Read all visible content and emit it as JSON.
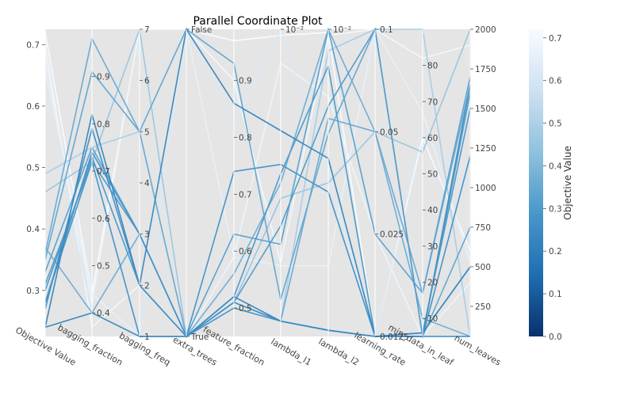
{
  "chart_data": {
    "type": "parallel_coordinates",
    "title": "Parallel Coordinate Plot",
    "colorbar": {
      "label": "Objective Value",
      "range": [
        0,
        0.72
      ],
      "ticks": [
        "0.0",
        "0.1",
        "0.2",
        "0.3",
        "0.4",
        "0.5",
        "0.6",
        "0.7"
      ],
      "colormap": "Blues_r"
    },
    "axes": [
      {
        "name": "Objective Value",
        "min": 0.225,
        "max": 0.725,
        "ticks": [
          "0.3",
          "0.4",
          "0.5",
          "0.6",
          "0.7"
        ],
        "tick_values": [
          0.3,
          0.4,
          0.5,
          0.6,
          0.7
        ]
      },
      {
        "name": "bagging_fraction",
        "min": 0.35,
        "max": 1.0,
        "ticks": [
          "0.4",
          "0.5",
          "0.6",
          "0.7",
          "0.8",
          "0.9"
        ],
        "tick_values": [
          0.4,
          0.5,
          0.6,
          0.7,
          0.8,
          0.9
        ]
      },
      {
        "name": "bagging_freq",
        "min": 1,
        "max": 7,
        "ticks": [
          "1",
          "2",
          "3",
          "4",
          "5",
          "6",
          "7"
        ],
        "tick_values": [
          1,
          2,
          3,
          4,
          5,
          6,
          7
        ]
      },
      {
        "name": "extra_trees",
        "min": 0,
        "max": 1,
        "ticks": [
          "True",
          "False"
        ],
        "tick_values": [
          0,
          1
        ]
      },
      {
        "name": "feature_fraction",
        "min": 0.45,
        "max": 0.99,
        "ticks": [
          "0.5",
          "0.6",
          "0.7",
          "0.8",
          "0.9"
        ],
        "tick_values": [
          0.5,
          0.6,
          0.7,
          0.8,
          0.9
        ]
      },
      {
        "name": "lambda_l1",
        "min": 0,
        "max": 1,
        "ticks": [
          "10⁻²"
        ],
        "tick_values": [
          1
        ]
      },
      {
        "name": "lambda_l2",
        "min": 0,
        "max": 1,
        "ticks": [
          "10⁻²"
        ],
        "tick_values": [
          1
        ]
      },
      {
        "name": "learning_rate",
        "min": 0.0125,
        "max": 0.1,
        "ticks": [
          "0.0125",
          "0.025",
          "0.05",
          "0.1"
        ],
        "tick_values": [
          0.0125,
          0.025,
          0.05,
          0.1
        ],
        "log": true
      },
      {
        "name": "min_data_in_leaf",
        "min": 5,
        "max": 90,
        "ticks": [
          "10",
          "20",
          "30",
          "40",
          "50",
          "60",
          "70",
          "80"
        ],
        "tick_values": [
          10,
          20,
          30,
          40,
          50,
          60,
          70,
          80
        ]
      },
      {
        "name": "num_leaves",
        "min": 60,
        "max": 2000,
        "ticks": [
          "250",
          "500",
          "750",
          "1000",
          "1250",
          "1500",
          "1750",
          "2000"
        ],
        "tick_values": [
          250,
          500,
          750,
          1000,
          1250,
          1500,
          1750,
          2000
        ]
      }
    ],
    "trials": [
      {
        "objective": 0.24,
        "values": [
          0.4,
          1,
          0,
          0.52,
          0.05,
          0.02,
          0.0125,
          5,
          60
        ]
      },
      {
        "objective": 0.24,
        "values": [
          0.82,
          2,
          1,
          0.86,
          0.67,
          0.58,
          0.0125,
          6,
          500
        ]
      },
      {
        "objective": 0.28,
        "values": [
          0.72,
          1,
          0,
          0.5,
          0.05,
          0.02,
          0.0125,
          6,
          500
        ]
      },
      {
        "objective": 0.28,
        "values": [
          0.74,
          3,
          0,
          0.74,
          0.56,
          0.47,
          0.0125,
          5,
          1200
        ]
      },
      {
        "objective": 0.27,
        "values": [
          0.79,
          2,
          0,
          0.51,
          0.05,
          0.02,
          0.0125,
          5,
          1650
        ]
      },
      {
        "objective": 0.3,
        "values": [
          0.73,
          2,
          0,
          0.52,
          0.53,
          0.88,
          0.0125,
          6,
          1500
        ]
      },
      {
        "objective": 0.31,
        "values": [
          0.72,
          3,
          0,
          0.51,
          0.36,
          0.75,
          0.1,
          5,
          1600
        ]
      },
      {
        "objective": 0.33,
        "values": [
          0.75,
          3,
          0,
          0.63,
          0.3,
          1.0,
          0.025,
          17,
          1700
        ]
      },
      {
        "objective": 0.35,
        "values": [
          0.91,
          5,
          1,
          0.93,
          0.12,
          0.66,
          0.1,
          5,
          750
        ]
      },
      {
        "objective": 0.36,
        "values": [
          0.98,
          5,
          0,
          0.51,
          0.05,
          0.71,
          0.05,
          17,
          1650
        ]
      },
      {
        "objective": 0.37,
        "values": [
          0.4,
          3,
          0,
          0.56,
          0.5,
          1.0,
          0.05,
          10,
          60
        ]
      },
      {
        "objective": 0.46,
        "values": [
          0.72,
          7,
          0,
          0.51,
          0.45,
          0.5,
          0.05,
          56,
          2000
        ]
      },
      {
        "objective": 0.49,
        "values": [
          0.75,
          5,
          0,
          0.51,
          0.05,
          0.93,
          0.1,
          90,
          60
        ]
      },
      {
        "objective": 0.62,
        "values": [
          0.4,
          1,
          1,
          0.82,
          1.0,
          0.52,
          0.0125,
          62,
          1000
        ]
      },
      {
        "objective": 0.66,
        "values": [
          0.44,
          1,
          1,
          0.59,
          0.23,
          0.23,
          0.1,
          67,
          530
        ]
      },
      {
        "objective": 0.68,
        "values": [
          0.42,
          7,
          0,
          0.59,
          0.89,
          0.78,
          0.025,
          5,
          400
        ]
      },
      {
        "objective": 0.7,
        "values": [
          0.37,
          2,
          1,
          0.9,
          0.24,
          0.98,
          0.1,
          82,
          1900
        ]
      },
      {
        "objective": 0.72,
        "values": [
          0.44,
          7,
          1,
          0.97,
          0.98,
          0.99,
          0.0125,
          60,
          600
        ]
      }
    ]
  }
}
